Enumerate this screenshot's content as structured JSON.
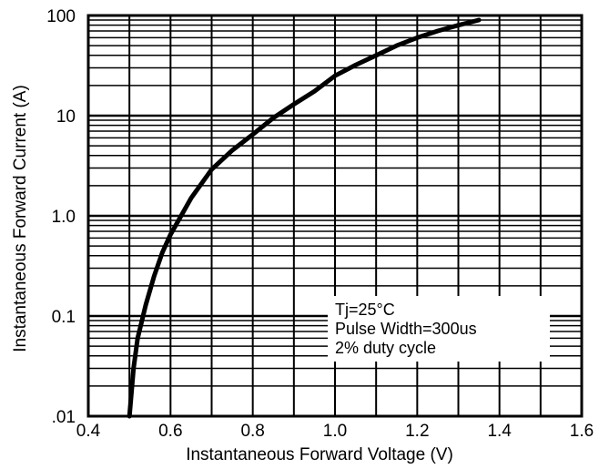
{
  "chart_data": {
    "type": "line",
    "xlabel": "Instantaneous Forward Voltage (V)",
    "ylabel": "Instantaneous Forward Current (A)",
    "xlim": [
      0.4,
      1.6
    ],
    "ylim": [
      0.01,
      100
    ],
    "yscale": "log",
    "x_ticks": [
      0.4,
      0.6,
      0.8,
      1.0,
      1.2,
      1.4,
      1.6
    ],
    "x_tick_labels": [
      "0.4",
      "0.6",
      "0.8",
      "1.0",
      "1.2",
      "1.4",
      "1.6"
    ],
    "y_ticks": [
      0.01,
      0.1,
      1,
      10,
      100
    ],
    "y_tick_labels": [
      ".01",
      "0.1",
      "1.0",
      "10",
      "100"
    ],
    "grid": true,
    "series": [
      {
        "color": "#000000",
        "x": [
          0.5,
          0.51,
          0.52,
          0.54,
          0.56,
          0.58,
          0.6,
          0.65,
          0.7,
          0.75,
          0.8,
          0.85,
          0.9,
          0.95,
          1.0,
          1.05,
          1.1,
          1.15,
          1.2,
          1.25,
          1.3,
          1.35
        ],
        "y": [
          0.01,
          0.03,
          0.06,
          0.13,
          0.25,
          0.43,
          0.65,
          1.5,
          2.9,
          4.5,
          6.5,
          9.5,
          13,
          17.5,
          25,
          32,
          40,
          50,
          60,
          70,
          80,
          90
        ]
      }
    ],
    "annotation": {
      "lines": [
        "Tj=25°C",
        "Pulse Width=300us",
        "2% duty cycle"
      ]
    }
  }
}
